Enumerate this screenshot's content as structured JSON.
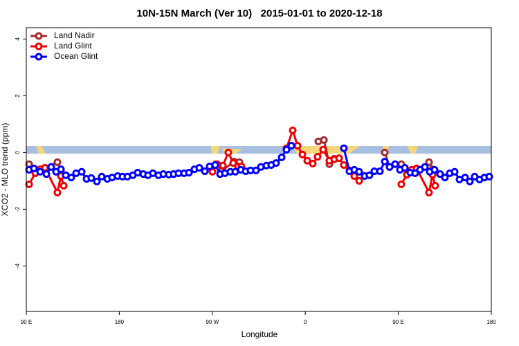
{
  "chart_data": {
    "type": "line",
    "title": "10N-15N March (Ver 10)   2015-01-01 to 2020-12-18",
    "x_label": "Longitude",
    "y_label": "XCO2 - MLO trend (ppm)",
    "xlim": [
      90,
      540
    ],
    "ylim": [
      -5.6,
      4.4
    ],
    "xticks": [
      {
        "value": 90,
        "label": "90 E"
      },
      {
        "value": 180,
        "label": "180"
      },
      {
        "value": 270,
        "label": "90 W"
      },
      {
        "value": 360,
        "label": "0"
      },
      {
        "value": 450,
        "label": "90 E"
      },
      {
        "value": 540,
        "label": "180"
      }
    ],
    "yticks": [
      -4,
      -2,
      0,
      2,
      4
    ],
    "legend": "topleft",
    "series": [
      {
        "name": "Land Nadir",
        "color": "#a52a2a",
        "x": [
          92.7,
          103.4,
          108.1,
          120.1,
          123.5,
          null,
          274.8,
          278.8,
          290.9,
          296.2,
          null,
          372.6,
          378.0,
          383.3,
          388.0,
          null,
          436.9,
          441.6,
          452.9,
          458.3,
          466.3,
          479.7,
          483.1
        ],
        "values": [
          -0.41,
          -0.61,
          -0.54,
          -0.34,
          -0.63,
          null,
          -0.41,
          -0.66,
          -0.32,
          -0.34,
          null,
          0.39,
          0.44,
          -0.41,
          -0.22,
          null,
          0.0,
          -0.51,
          -0.41,
          -0.78,
          -0.63,
          -0.34,
          -0.59
        ]
      },
      {
        "name": "Land Glint",
        "color": "#ee0000",
        "x": [
          92.7,
          98.7,
          103.4,
          108.1,
          120.1,
          123.5,
          126.2,
          null,
          270.1,
          273.5,
          280.2,
          285.5,
          290.2,
          294.9,
          298.2,
          null,
          341.8,
          347.8,
          352.5,
          357.2,
          361.9,
          367.2,
          371.9,
          377.3,
          383.3,
          388.0,
          392.7,
          397.3,
          402.7,
          407.4,
          412.1,
          null,
          452.9,
          458.3,
          463.0,
          467.7,
          479.7,
          483.1,
          485.7
        ],
        "values": [
          -1.12,
          -0.73,
          -0.59,
          -0.54,
          -1.41,
          -0.83,
          -1.17,
          null,
          -0.68,
          -0.41,
          -0.46,
          0.0,
          -0.37,
          -0.49,
          -0.49,
          null,
          0.15,
          0.78,
          0.24,
          -0.07,
          -0.29,
          -0.39,
          -0.15,
          0.1,
          -0.29,
          -0.24,
          -0.2,
          -0.44,
          -0.63,
          -0.83,
          -1.0,
          null,
          -1.12,
          -0.78,
          -0.61,
          -0.56,
          -1.41,
          -0.78,
          -1.17
        ]
      },
      {
        "name": "Ocean Glint",
        "color": "#0000ff",
        "x": [
          92.7,
          97.4,
          103.4,
          109.4,
          114.1,
          118.8,
          123.5,
          128.2,
          133.5,
          138.2,
          143.6,
          148.3,
          152.9,
          158.3,
          163.0,
          168.4,
          173.0,
          178.4,
          183.1,
          187.8,
          193.1,
          197.8,
          203.2,
          207.8,
          212.5,
          217.9,
          222.6,
          227.9,
          232.6,
          237.3,
          242.7,
          247.4,
          252.7,
          257.4,
          262.8,
          267.4,
          272.8,
          277.5,
          282.2,
          287.5,
          292.2,
          297.6,
          302.3,
          307.0,
          312.3,
          317.0,
          322.4,
          327.0,
          331.7,
          337.1,
          341.8,
          346.5,
          null,
          397.3,
          402.7,
          407.4,
          412.1,
          417.4,
          422.1,
          426.8,
          432.2,
          436.9,
          441.6,
          446.9,
          451.6,
          456.3,
          461.6,
          466.3,
          471.0,
          475.7,
          480.4,
          485.1,
          490.4,
          495.1,
          499.8,
          504.5,
          509.2,
          514.6,
          519.2,
          523.9,
          528.6,
          533.3,
          538.0
        ],
        "values": [
          -0.61,
          -0.56,
          -0.68,
          -0.76,
          -0.51,
          -0.68,
          -0.59,
          -0.8,
          -0.88,
          -0.73,
          -0.68,
          -0.93,
          -0.9,
          -1.02,
          -0.85,
          -0.93,
          -0.88,
          -0.83,
          -0.85,
          -0.85,
          -0.8,
          -0.71,
          -0.76,
          -0.8,
          -0.73,
          -0.8,
          -0.76,
          -0.78,
          -0.76,
          -0.73,
          -0.73,
          -0.71,
          -0.59,
          -0.54,
          -0.66,
          -0.49,
          -0.44,
          -0.76,
          -0.73,
          -0.68,
          -0.68,
          -0.61,
          -0.66,
          -0.63,
          -0.63,
          -0.51,
          -0.46,
          -0.44,
          -0.37,
          -0.17,
          0.1,
          0.24,
          null,
          0.15,
          -0.66,
          -0.61,
          -0.68,
          -0.83,
          -0.8,
          -0.66,
          -0.66,
          -0.32,
          -0.51,
          -0.41,
          -0.61,
          -0.54,
          -0.71,
          -0.73,
          -0.61,
          -0.51,
          -0.68,
          -0.61,
          -0.76,
          -0.88,
          -0.73,
          -0.68,
          -0.95,
          -0.88,
          -1.02,
          -0.85,
          -0.95,
          -0.88,
          -0.85
        ]
      }
    ]
  }
}
